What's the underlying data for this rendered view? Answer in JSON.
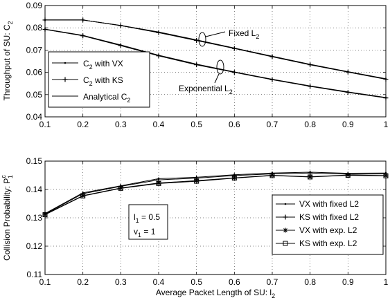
{
  "chart_data": [
    {
      "type": "line",
      "ylabel_main": "Throughput of SU: C",
      "ylabel_sub": "2",
      "xlim": [
        0.1,
        1
      ],
      "ylim": [
        0.04,
        0.09
      ],
      "xticks": [
        "0.1",
        "0.2",
        "0.3",
        "0.4",
        "0.5",
        "0.6",
        "0.7",
        "0.8",
        "0.9",
        "1"
      ],
      "yticks": [
        "0.04",
        "0.05",
        "0.06",
        "0.07",
        "0.08",
        "0.09"
      ],
      "grid": true,
      "legend_position": "left",
      "legend": [
        {
          "main": "C",
          "sub": "2",
          "rest": " with VX",
          "marker": "dot"
        },
        {
          "main": "C",
          "sub": "2",
          "rest": " with KS",
          "marker": "plus"
        },
        {
          "main": "Analytical C",
          "sub": "2",
          "rest": "",
          "marker": "none"
        }
      ],
      "annotations": [
        {
          "main": "Fixed L",
          "sub": "2"
        },
        {
          "main": "Exponential L",
          "sub": "2"
        }
      ],
      "x": [
        0.1,
        0.2,
        0.3,
        0.4,
        0.5,
        0.6,
        0.7,
        0.8,
        0.9,
        1.0
      ],
      "series": [
        {
          "group": "Fixed L2",
          "marker": "dot",
          "values": [
            0.0835,
            0.0835,
            0.081,
            0.078,
            0.0745,
            0.0708,
            0.0672,
            0.0635,
            0.0602,
            0.057
          ]
        },
        {
          "group": "Fixed L2",
          "marker": "plus",
          "values": [
            0.0835,
            0.0835,
            0.081,
            0.0778,
            0.0743,
            0.0707,
            0.067,
            0.0634,
            0.0601,
            0.0569
          ]
        },
        {
          "group": "Fixed L2",
          "marker": "none",
          "values": [
            0.0835,
            0.0835,
            0.0811,
            0.0781,
            0.0746,
            0.0709,
            0.0672,
            0.0636,
            0.0603,
            0.0571
          ]
        },
        {
          "group": "Exponential L2",
          "marker": "dot",
          "values": [
            0.0793,
            0.0765,
            0.0722,
            0.0676,
            0.0636,
            0.0601,
            0.0568,
            0.0538,
            0.0511,
            0.0486
          ]
        },
        {
          "group": "Exponential L2",
          "marker": "plus",
          "values": [
            0.0793,
            0.0764,
            0.072,
            0.0674,
            0.0634,
            0.06,
            0.0567,
            0.0537,
            0.051,
            0.0485
          ]
        },
        {
          "group": "Exponential L2",
          "marker": "none",
          "values": [
            0.0794,
            0.0766,
            0.0723,
            0.0677,
            0.0637,
            0.0602,
            0.0569,
            0.0539,
            0.0512,
            0.0487
          ]
        }
      ]
    },
    {
      "type": "line",
      "ylabel_main": "Collision Probability: P",
      "ylabel_sup": "c",
      "ylabel_sub": "1",
      "xlabel_main": "Average Packet Length of SU: l",
      "xlabel_sub": "2",
      "xlim": [
        0.1,
        1
      ],
      "ylim": [
        0.11,
        0.15
      ],
      "xticks": [
        "0.1",
        "0.2",
        "0.3",
        "0.4",
        "0.5",
        "0.6",
        "0.7",
        "0.8",
        "0.9",
        "1"
      ],
      "yticks": [
        "0.11",
        "0.12",
        "0.13",
        "0.14",
        "0.15"
      ],
      "grid": true,
      "legend_position": "bottom-right",
      "legend": [
        {
          "label": "VX with fixed L2",
          "marker": "dot"
        },
        {
          "label": "KS with fixed L2",
          "marker": "plus"
        },
        {
          "label": "VX with exp. L2",
          "marker": "star"
        },
        {
          "label": "KS with exp. L2",
          "marker": "square"
        }
      ],
      "textbox": [
        {
          "main": "l",
          "sub": "1",
          "rest": " = 0.5"
        },
        {
          "main": "v",
          "sub": "1",
          "rest": " = 1"
        }
      ],
      "x": [
        0.1,
        0.2,
        0.3,
        0.4,
        0.5,
        0.6,
        0.7,
        0.8,
        0.9,
        1.0
      ],
      "series": [
        {
          "name": "VX with fixed L2",
          "marker": "dot",
          "values": [
            0.1315,
            0.1388,
            0.1413,
            0.1438,
            0.1443,
            0.1452,
            0.1458,
            0.1461,
            0.1457,
            0.1458
          ]
        },
        {
          "name": "KS with fixed L2",
          "marker": "plus",
          "values": [
            0.1313,
            0.1385,
            0.1411,
            0.1434,
            0.144,
            0.1449,
            0.1455,
            0.1458,
            0.1454,
            0.1455
          ]
        },
        {
          "name": "VX with exp. L2",
          "marker": "star",
          "values": [
            0.1312,
            0.1378,
            0.1405,
            0.1423,
            0.1431,
            0.1441,
            0.145,
            0.1445,
            0.1451,
            0.1449
          ]
        },
        {
          "name": "KS with exp. L2",
          "marker": "square",
          "values": [
            0.1311,
            0.1377,
            0.1404,
            0.1421,
            0.1429,
            0.144,
            0.1449,
            0.1444,
            0.145,
            0.1448
          ]
        }
      ]
    }
  ]
}
